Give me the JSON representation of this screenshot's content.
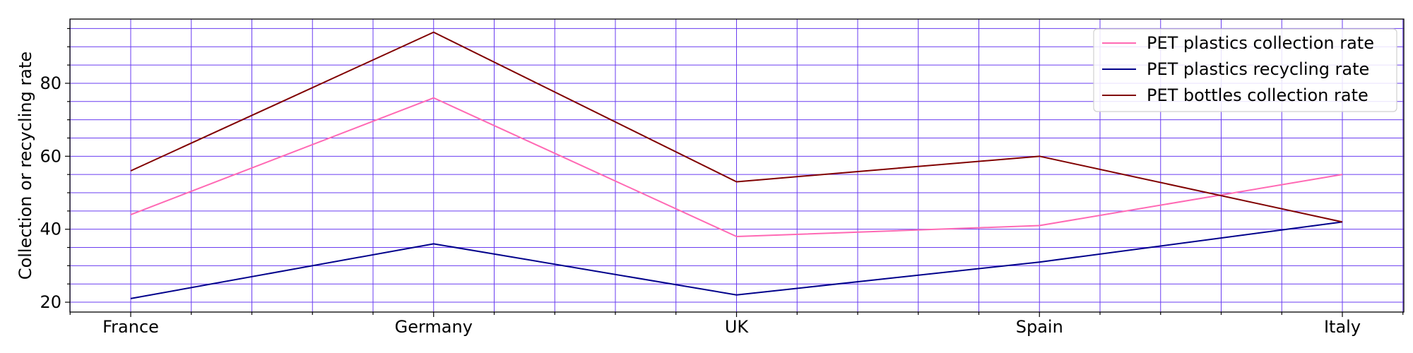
{
  "chart_data": {
    "type": "line",
    "title": "",
    "xlabel": "",
    "ylabel": "Collection or recycling rate",
    "categories": [
      "France",
      "Germany",
      "UK",
      "Spain",
      "Italy"
    ],
    "series": [
      {
        "name": "PET plastics collection rate",
        "values": [
          44,
          76,
          38,
          41,
          55
        ],
        "color": "#ff69b4"
      },
      {
        "name": "PET plastics recycling rate",
        "values": [
          21,
          36,
          22,
          31,
          42
        ],
        "color": "#00008b"
      },
      {
        "name": "PET bottles collection rate",
        "values": [
          56,
          94,
          53,
          60,
          42
        ],
        "color": "#800000"
      }
    ],
    "ylim": [
      17.3,
      97.6
    ],
    "yticks": [
      20,
      40,
      60,
      80
    ],
    "grid": true,
    "grid_color": "#6a3df0",
    "minor_grid": true,
    "legend_position": "top-right"
  }
}
